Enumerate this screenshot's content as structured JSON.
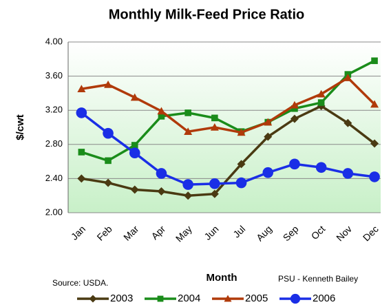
{
  "chart_data": {
    "type": "line",
    "title": "Monthly Milk-Feed Price Ratio",
    "x_label": "Month",
    "y_label": "$/cwt",
    "annotations": [
      "Source: USDA.",
      "PSU - Kenneth Bailey"
    ],
    "categories": [
      "Jan",
      "Feb",
      "Mar",
      "Apr",
      "May",
      "Jun",
      "Jul",
      "Aug",
      "Sep",
      "Oct",
      "Nov",
      "Dec"
    ],
    "series": [
      {
        "name": "2003",
        "color": "#4a3a12",
        "marker": "diamond",
        "values": [
          2.4,
          2.35,
          2.27,
          2.25,
          2.2,
          2.22,
          2.57,
          2.89,
          3.1,
          3.25,
          3.05,
          2.81
        ]
      },
      {
        "name": "2004",
        "color": "#1a8c1a",
        "marker": "square",
        "values": [
          2.71,
          2.61,
          2.79,
          3.13,
          3.17,
          3.11,
          2.95,
          3.06,
          3.22,
          3.29,
          3.62,
          3.78
        ]
      },
      {
        "name": "2005",
        "color": "#b03a0a",
        "marker": "triangle",
        "values": [
          3.45,
          3.5,
          3.35,
          3.19,
          2.95,
          3.0,
          2.94,
          3.06,
          3.26,
          3.39,
          3.58,
          3.27
        ]
      },
      {
        "name": "2006",
        "color": "#1a2ee6",
        "marker": "circle",
        "values": [
          3.17,
          2.93,
          2.7,
          2.46,
          2.33,
          2.34,
          2.35,
          2.47,
          2.57,
          2.53,
          2.46,
          2.42
        ]
      }
    ],
    "ylim": [
      2.0,
      4.0
    ],
    "yticks": [
      {
        "value": 2.0,
        "label": "2.00"
      },
      {
        "value": 2.4,
        "label": "2.40"
      },
      {
        "value": 2.8,
        "label": "2.80"
      },
      {
        "value": 3.2,
        "label": "3.20"
      },
      {
        "value": 3.6,
        "label": "3.60"
      },
      {
        "value": 4.0,
        "label": "4.00"
      }
    ],
    "grid": true,
    "legend": "bottom"
  }
}
